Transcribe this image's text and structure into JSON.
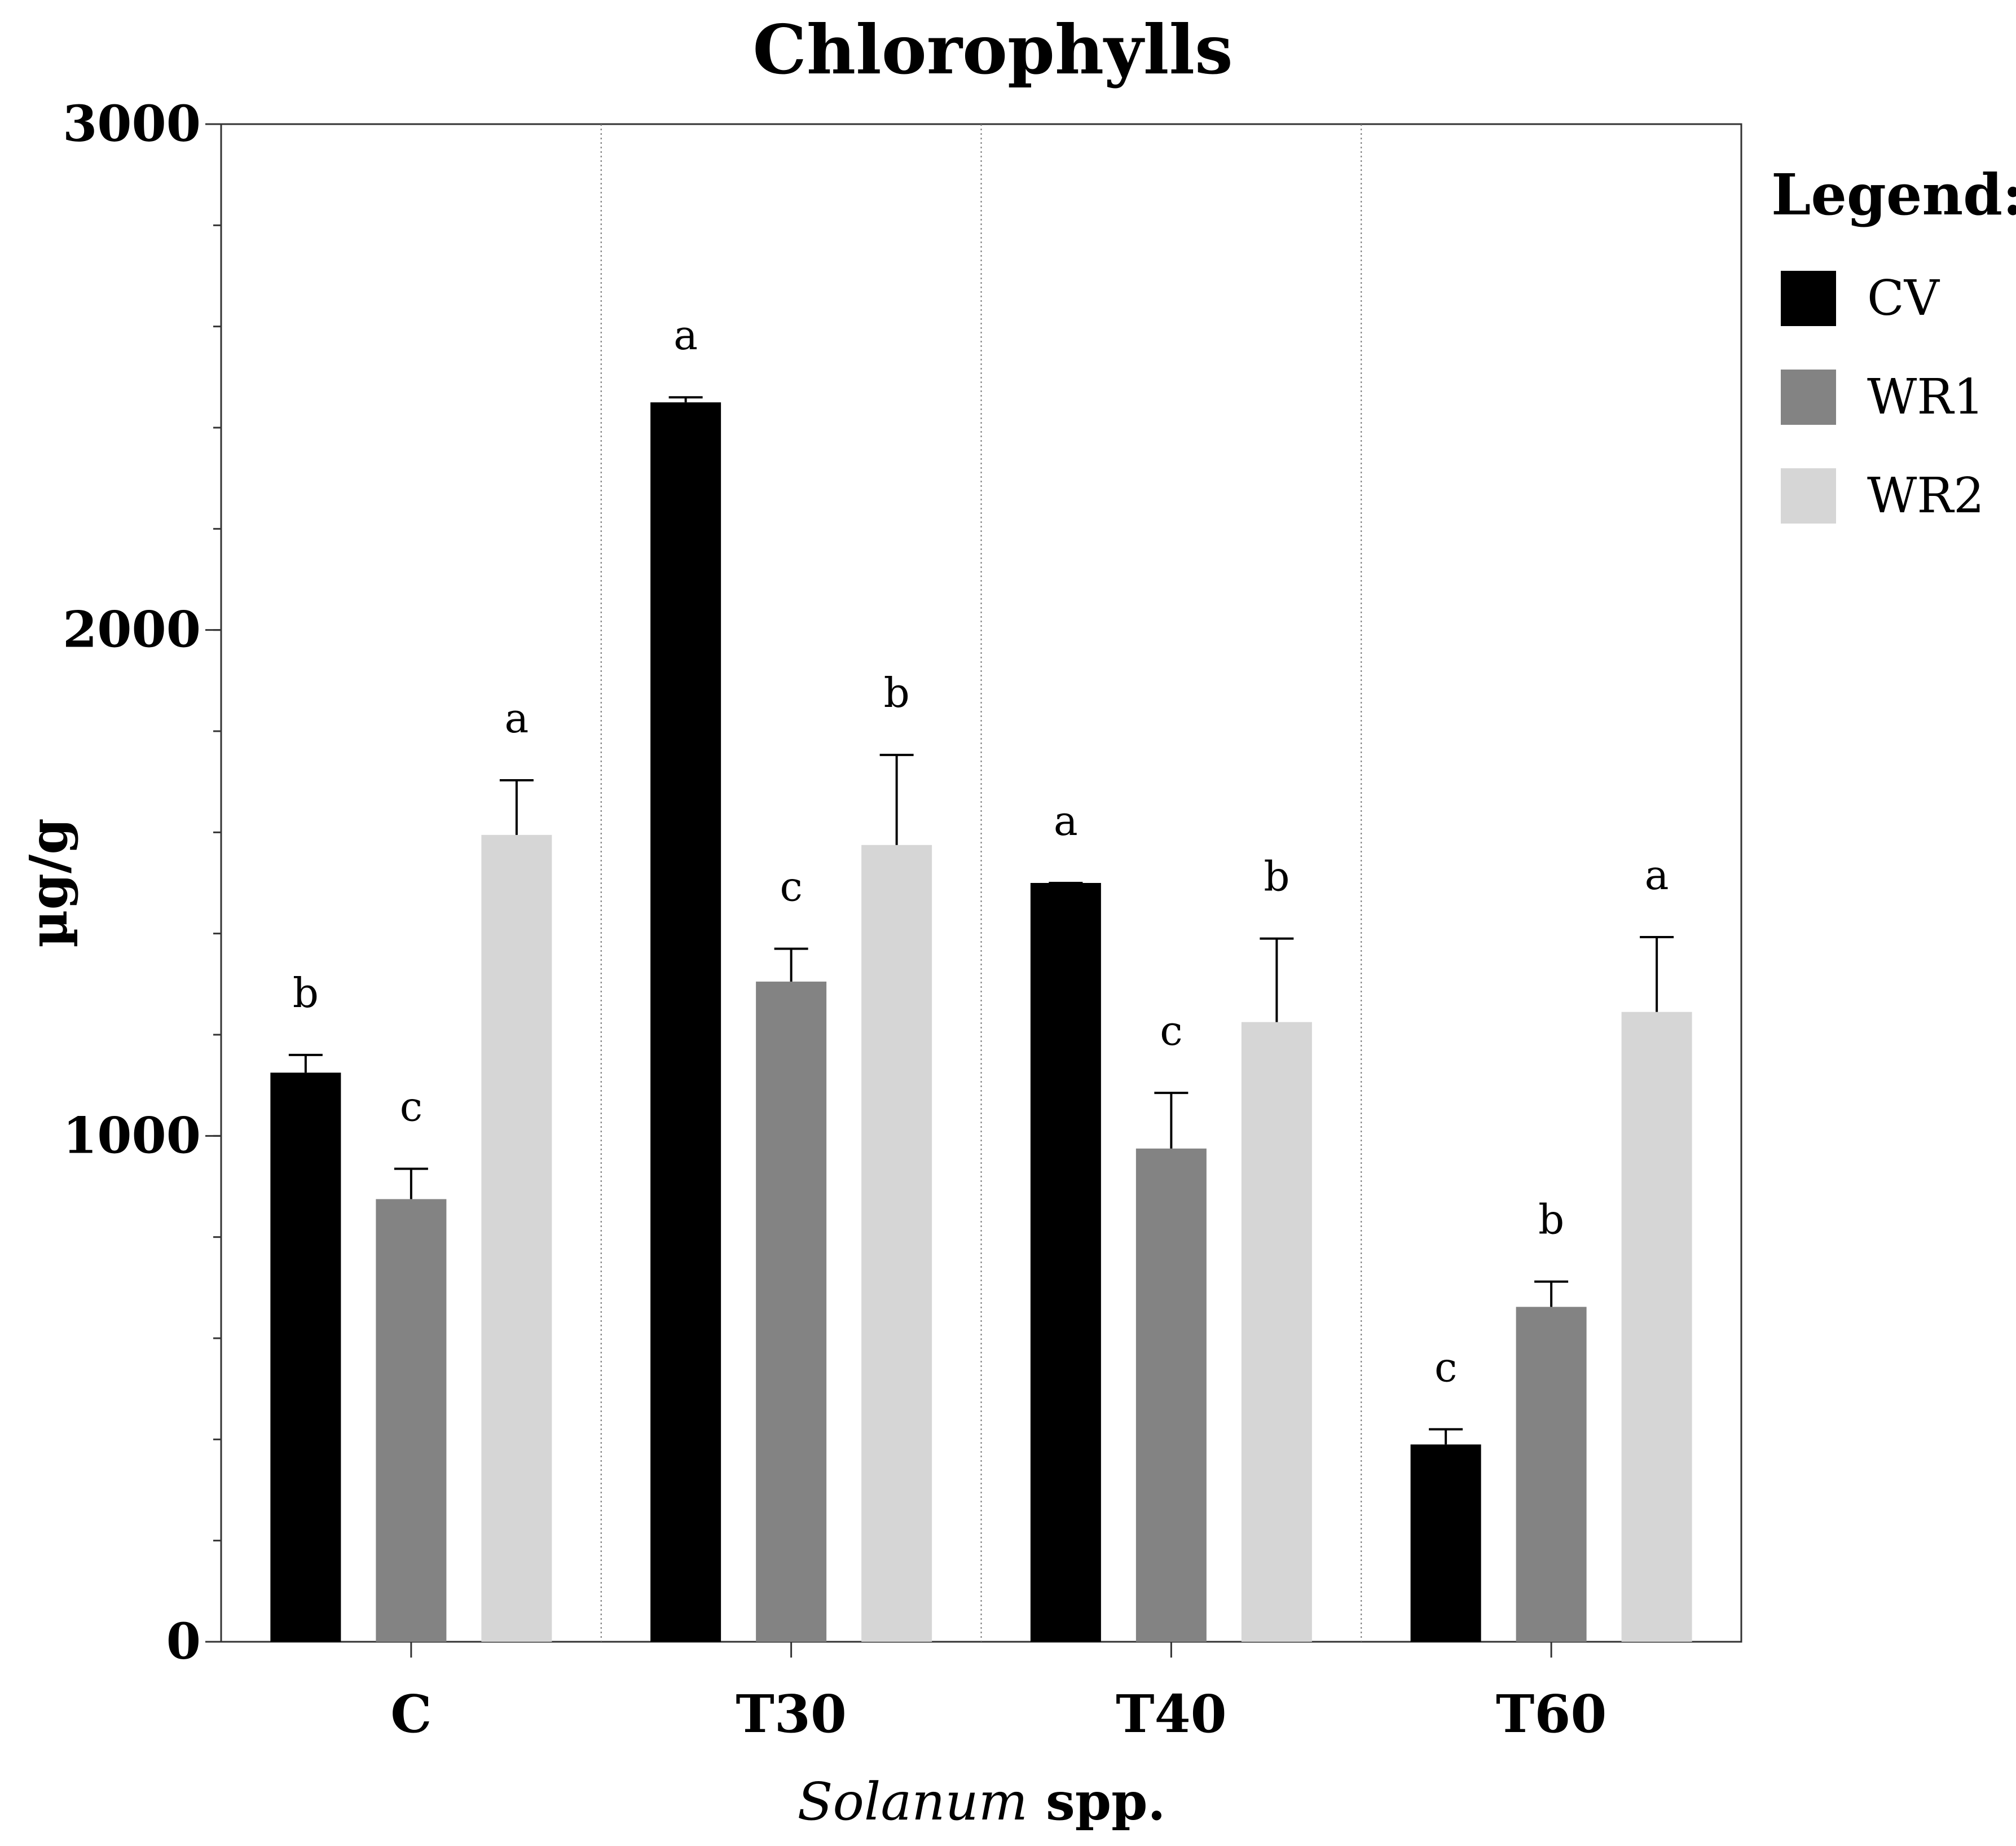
{
  "chart_data": {
    "type": "bar",
    "title": "Chlorophylls",
    "xlabel_italic": "Solanum",
    "xlabel_rest": " spp.",
    "ylabel": "µg/g",
    "ylim": [
      0,
      3000
    ],
    "yticks": [
      0,
      1000,
      2000,
      3000
    ],
    "categories": [
      "C",
      "T30",
      "T40",
      "T60"
    ],
    "legend_title": "Legend:",
    "legend_position": "right",
    "series": [
      {
        "name": "CV",
        "color": "#000000",
        "values": [
          1125,
          2450,
          1500,
          390
        ],
        "errors": [
          35,
          10,
          0,
          30
        ],
        "letters": [
          "b",
          "a",
          "a",
          "c"
        ]
      },
      {
        "name": "WR1",
        "color": "#838383",
        "values": [
          875,
          1305,
          975,
          662
        ],
        "errors": [
          60,
          65,
          110,
          50
        ],
        "letters": [
          "c",
          "c",
          "c",
          "b"
        ]
      },
      {
        "name": "WR2",
        "color": "#d6d6d6",
        "values": [
          1595,
          1575,
          1225,
          1245
        ],
        "errors": [
          108,
          178,
          165,
          148
        ],
        "letters": [
          "a",
          "b",
          "b",
          "a"
        ]
      }
    ]
  }
}
